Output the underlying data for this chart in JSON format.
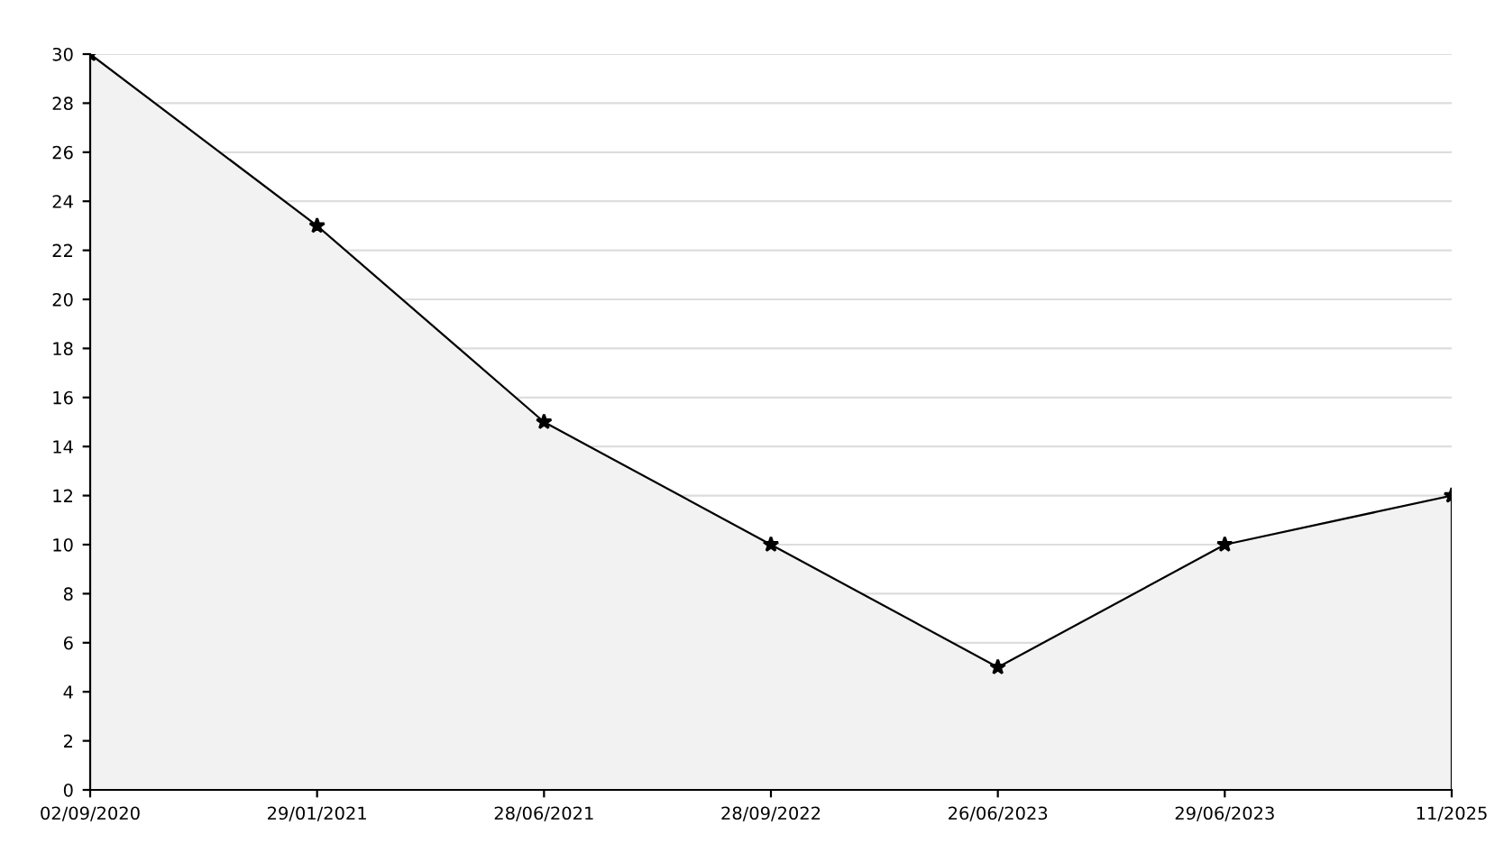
{
  "chart_data": {
    "type": "area",
    "categories": [
      "02/09/2020",
      "29/01/2021",
      "28/06/2021",
      "28/09/2022",
      "26/06/2023",
      "29/06/2023",
      "11/2025"
    ],
    "series": [
      {
        "color": "#f2f2f2",
        "values": [
          30,
          23,
          15,
          10,
          5,
          10,
          12
        ]
      }
    ],
    "ylim": [
      0,
      30
    ],
    "yticks": [
      0,
      2,
      4,
      6,
      8,
      10,
      12,
      14,
      16,
      18,
      20,
      22,
      24,
      26,
      28,
      30
    ],
    "grid": "y",
    "marker": "star",
    "line_style": "solid",
    "legend": false
  }
}
